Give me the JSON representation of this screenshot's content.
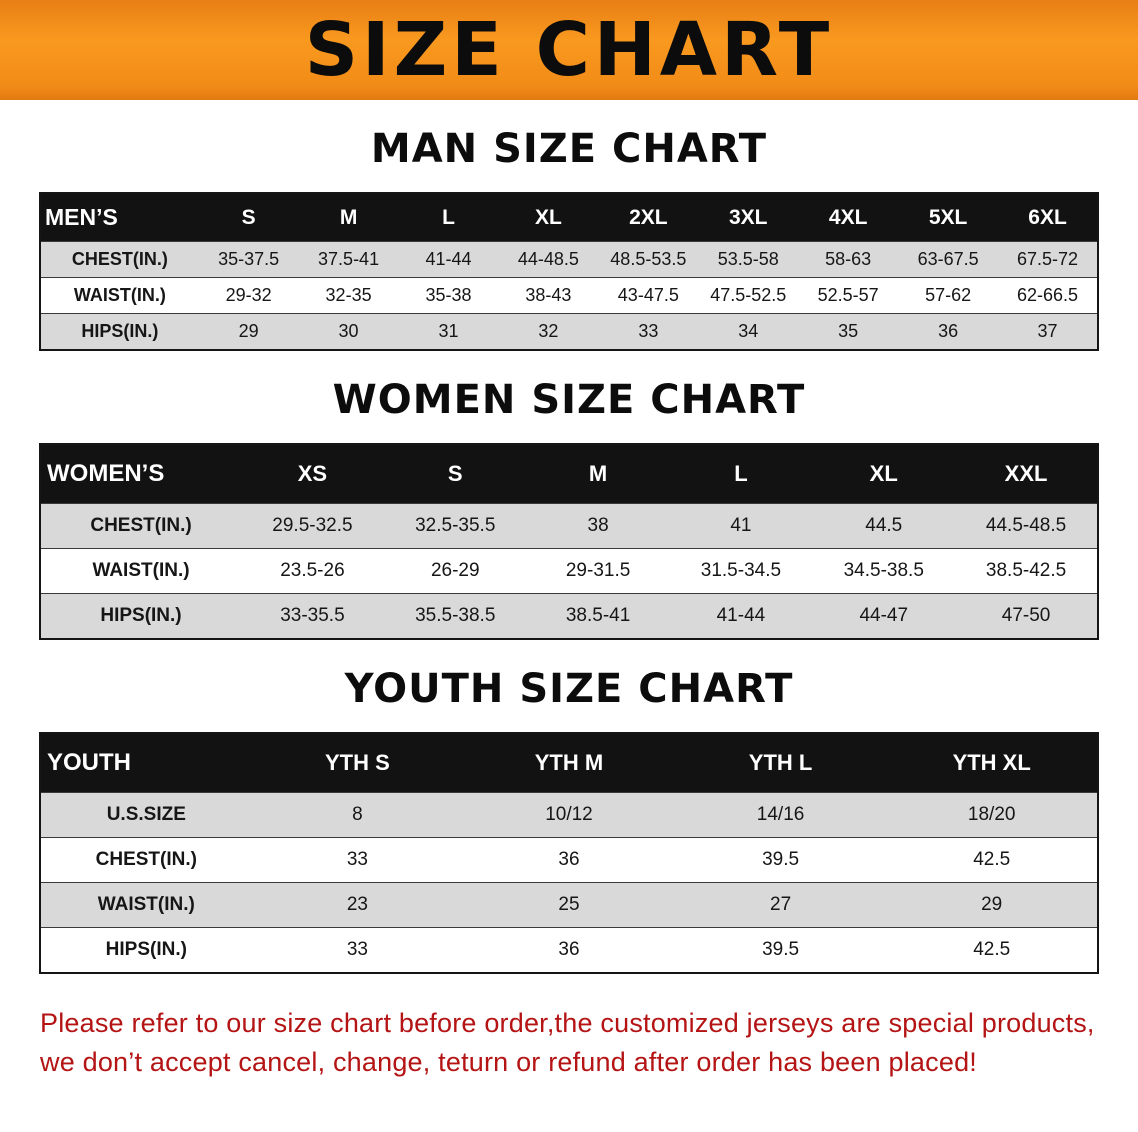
{
  "banner": {
    "title": "SIZE CHART",
    "bg_color": "#f28c18"
  },
  "sections": [
    {
      "id": "men",
      "heading": "MAN SIZE CHART",
      "columns": [
        "MEN’S",
        "S",
        "M",
        "L",
        "XL",
        "2XL",
        "3XL",
        "4XL",
        "5XL",
        "6XL"
      ],
      "rows": [
        [
          "CHEST(IN.)",
          "35-37.5",
          "37.5-41",
          "41-44",
          "44-48.5",
          "48.5-53.5",
          "53.5-58",
          "58-63",
          "63-67.5",
          "67.5-72"
        ],
        [
          "WAIST(IN.)",
          "29-32",
          "32-35",
          "35-38",
          "38-43",
          "43-47.5",
          "47.5-52.5",
          "52.5-57",
          "57-62",
          "62-66.5"
        ],
        [
          "HIPS(IN.)",
          "29",
          "30",
          "31",
          "32",
          "33",
          "34",
          "35",
          "36",
          "37"
        ]
      ]
    },
    {
      "id": "women",
      "heading": "WOMEN SIZE CHART",
      "columns": [
        "WOMEN’S",
        "XS",
        "S",
        "M",
        "L",
        "XL",
        "XXL"
      ],
      "rows": [
        [
          "CHEST(IN.)",
          "29.5-32.5",
          "32.5-35.5",
          "38",
          "41",
          "44.5",
          "44.5-48.5"
        ],
        [
          "WAIST(IN.)",
          "23.5-26",
          "26-29",
          "29-31.5",
          "31.5-34.5",
          "34.5-38.5",
          "38.5-42.5"
        ],
        [
          "HIPS(IN.)",
          "33-35.5",
          "35.5-38.5",
          "38.5-41",
          "41-44",
          "44-47",
          "47-50"
        ]
      ]
    },
    {
      "id": "youth",
      "heading": "YOUTH SIZE CHART",
      "columns": [
        "YOUTH",
        "YTH S",
        "YTH M",
        "YTH L",
        "YTH XL"
      ],
      "rows": [
        [
          "U.S.SIZE",
          "8",
          "10/12",
          "14/16",
          "18/20"
        ],
        [
          "CHEST(IN.)",
          "33",
          "36",
          "39.5",
          "42.5"
        ],
        [
          "WAIST(IN.)",
          "23",
          "25",
          "27",
          "29"
        ],
        [
          "HIPS(IN.)",
          "33",
          "36",
          "39.5",
          "42.5"
        ]
      ]
    }
  ],
  "disclaimer": {
    "line1": "Please refer to our size chart before order,the customized jerseys are special products,",
    "line2": "we don’t accept cancel, change, teturn or refund after order has been placed!",
    "text_color": "#b41414"
  }
}
